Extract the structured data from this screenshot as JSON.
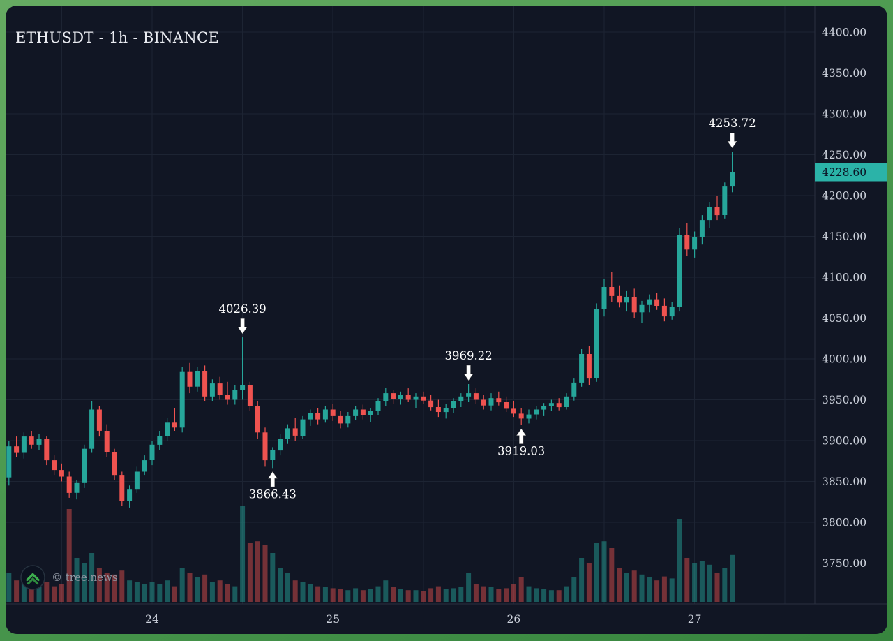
{
  "chart": {
    "title": "ETHUSDT - 1h - BINANCE"
  },
  "watermark": {
    "text": "© tree.news"
  },
  "colors": {
    "frame_green": "#4c9a50",
    "panel_bg": "#111624",
    "grid": "#1d2433",
    "axis_line": "#2a3040",
    "axis_text": "#cdd2dc",
    "up": "#26a69a",
    "down": "#ef5350",
    "volume_up": "rgba(38,166,154,0.48)",
    "volume_down": "rgba(239,83,80,0.45)",
    "accent": "#2bb3a8",
    "price_label_text": "#0b1526",
    "annotation": "#ffffff"
  },
  "chart_data": {
    "type": "candlestick",
    "symbol": "ETHUSDT",
    "interval": "1h",
    "exchange": "BINANCE",
    "title": "ETHUSDT - 1h - BINANCE",
    "current_price": 4228.6,
    "price_axis": {
      "ticks": [
        4400,
        4350,
        4300,
        4250,
        4200,
        4150,
        4100,
        4050,
        4000,
        3950,
        3900,
        3850,
        3800,
        3750
      ],
      "tick_step": 50,
      "format": "0.00"
    },
    "time_axis": {
      "labels": [
        {
          "text": "24",
          "index": 19
        },
        {
          "text": "25",
          "index": 43
        },
        {
          "text": "26",
          "index": 67
        },
        {
          "text": "27",
          "index": 91
        }
      ],
      "grid_indices": [
        7,
        19,
        31,
        43,
        55,
        67,
        79,
        91,
        103
      ]
    },
    "annotations": [
      {
        "label": "4026.39",
        "price": 4026.39,
        "index": 31,
        "placement": "above"
      },
      {
        "label": "3866.43",
        "price": 3866.43,
        "index": 35,
        "placement": "below"
      },
      {
        "label": "3969.22",
        "price": 3969.22,
        "index": 61,
        "placement": "above"
      },
      {
        "label": "3919.03",
        "price": 3919.03,
        "index": 68,
        "placement": "below"
      },
      {
        "label": "4253.72",
        "price": 4253.72,
        "index": 96,
        "placement": "above"
      }
    ],
    "candles": [
      [
        3855,
        3900,
        3845,
        3893,
        0.3
      ],
      [
        3893,
        3905,
        3880,
        3885,
        0.22
      ],
      [
        3885,
        3910,
        3878,
        3905,
        0.25
      ],
      [
        3905,
        3912,
        3890,
        3895,
        0.18
      ],
      [
        3895,
        3908,
        3888,
        3902,
        0.15
      ],
      [
        3902,
        3905,
        3870,
        3876,
        0.2
      ],
      [
        3876,
        3882,
        3858,
        3864,
        0.16
      ],
      [
        3864,
        3872,
        3850,
        3856,
        0.18
      ],
      [
        3856,
        3862,
        3830,
        3836,
        0.95
      ],
      [
        3836,
        3852,
        3828,
        3848,
        0.45
      ],
      [
        3848,
        3895,
        3842,
        3890,
        0.4
      ],
      [
        3890,
        3948,
        3885,
        3938,
        0.5
      ],
      [
        3938,
        3942,
        3905,
        3912,
        0.35
      ],
      [
        3912,
        3920,
        3880,
        3886,
        0.3
      ],
      [
        3886,
        3890,
        3852,
        3858,
        0.28
      ],
      [
        3858,
        3862,
        3820,
        3826,
        0.32
      ],
      [
        3826,
        3845,
        3818,
        3840,
        0.22
      ],
      [
        3840,
        3868,
        3836,
        3862,
        0.2
      ],
      [
        3862,
        3882,
        3858,
        3876,
        0.18
      ],
      [
        3876,
        3900,
        3870,
        3895,
        0.2
      ],
      [
        3895,
        3912,
        3888,
        3906,
        0.18
      ],
      [
        3906,
        3928,
        3900,
        3922,
        0.22
      ],
      [
        3922,
        3940,
        3912,
        3916,
        0.16
      ],
      [
        3916,
        3990,
        3910,
        3984,
        0.35
      ],
      [
        3984,
        3995,
        3958,
        3966,
        0.3
      ],
      [
        3966,
        3990,
        3960,
        3985,
        0.25
      ],
      [
        3985,
        3992,
        3948,
        3954,
        0.28
      ],
      [
        3954,
        3975,
        3948,
        3970,
        0.2
      ],
      [
        3970,
        3978,
        3950,
        3956,
        0.22
      ],
      [
        3956,
        3972,
        3944,
        3950,
        0.18
      ],
      [
        3950,
        3968,
        3944,
        3962,
        0.16
      ],
      [
        3962,
        4026.39,
        3950,
        3968,
        0.98
      ],
      [
        3968,
        3972,
        3936,
        3942,
        0.6
      ],
      [
        3942,
        3948,
        3902,
        3910,
        0.62
      ],
      [
        3910,
        3916,
        3868,
        3876,
        0.58
      ],
      [
        3876,
        3892,
        3866.43,
        3888,
        0.5
      ],
      [
        3888,
        3908,
        3882,
        3902,
        0.35
      ],
      [
        3902,
        3920,
        3896,
        3915,
        0.3
      ],
      [
        3915,
        3928,
        3900,
        3906,
        0.22
      ],
      [
        3906,
        3930,
        3902,
        3926,
        0.2
      ],
      [
        3926,
        3938,
        3918,
        3934,
        0.18
      ],
      [
        3934,
        3940,
        3920,
        3926,
        0.16
      ],
      [
        3926,
        3942,
        3922,
        3938,
        0.15
      ],
      [
        3938,
        3945,
        3924,
        3930,
        0.14
      ],
      [
        3930,
        3936,
        3915,
        3921,
        0.13
      ],
      [
        3921,
        3935,
        3916,
        3930,
        0.12
      ],
      [
        3930,
        3942,
        3925,
        3938,
        0.14
      ],
      [
        3938,
        3944,
        3926,
        3931,
        0.12
      ],
      [
        3931,
        3940,
        3923,
        3936,
        0.13
      ],
      [
        3936,
        3952,
        3931,
        3948,
        0.16
      ],
      [
        3948,
        3965,
        3942,
        3958,
        0.22
      ],
      [
        3958,
        3962,
        3945,
        3951,
        0.15
      ],
      [
        3951,
        3960,
        3944,
        3956,
        0.13
      ],
      [
        3956,
        3964,
        3947,
        3950,
        0.12
      ],
      [
        3950,
        3958,
        3940,
        3954,
        0.12
      ],
      [
        3954,
        3960,
        3945,
        3949,
        0.11
      ],
      [
        3949,
        3956,
        3937,
        3941,
        0.14
      ],
      [
        3941,
        3950,
        3929,
        3935,
        0.16
      ],
      [
        3935,
        3945,
        3927,
        3940,
        0.13
      ],
      [
        3940,
        3952,
        3934,
        3948,
        0.14
      ],
      [
        3948,
        3958,
        3941,
        3954,
        0.15
      ],
      [
        3954,
        3969.22,
        3947,
        3958,
        0.3
      ],
      [
        3958,
        3964,
        3945,
        3950,
        0.18
      ],
      [
        3950,
        3956,
        3938,
        3943,
        0.16
      ],
      [
        3943,
        3958,
        3937,
        3952,
        0.15
      ],
      [
        3952,
        3960,
        3943,
        3947,
        0.13
      ],
      [
        3947,
        3954,
        3935,
        3939,
        0.14
      ],
      [
        3939,
        3948,
        3929,
        3933,
        0.18
      ],
      [
        3933,
        3940,
        3919.03,
        3927,
        0.25
      ],
      [
        3927,
        3938,
        3921,
        3932,
        0.16
      ],
      [
        3932,
        3942,
        3926,
        3938,
        0.14
      ],
      [
        3938,
        3946,
        3930,
        3942,
        0.13
      ],
      [
        3942,
        3950,
        3936,
        3946,
        0.12
      ],
      [
        3946,
        3952,
        3937,
        3941,
        0.12
      ],
      [
        3941,
        3958,
        3938,
        3954,
        0.16
      ],
      [
        3954,
        3976,
        3949,
        3971,
        0.25
      ],
      [
        3971,
        4012,
        3966,
        4006,
        0.45
      ],
      [
        4006,
        4016,
        3968,
        3976,
        0.4
      ],
      [
        3976,
        4068,
        3972,
        4061,
        0.6
      ],
      [
        4061,
        4098,
        4052,
        4088,
        0.62
      ],
      [
        4088,
        4106,
        4070,
        4077,
        0.55
      ],
      [
        4077,
        4090,
        4063,
        4069,
        0.35
      ],
      [
        4069,
        4083,
        4058,
        4076,
        0.3
      ],
      [
        4076,
        4086,
        4050,
        4057,
        0.32
      ],
      [
        4057,
        4071,
        4044,
        4066,
        0.28
      ],
      [
        4066,
        4079,
        4057,
        4073,
        0.25
      ],
      [
        4073,
        4081,
        4060,
        4065,
        0.22
      ],
      [
        4065,
        4074,
        4046,
        4052,
        0.26
      ],
      [
        4052,
        4070,
        4048,
        4064,
        0.24
      ],
      [
        4064,
        4160,
        4058,
        4152,
        0.85
      ],
      [
        4152,
        4166,
        4126,
        4134,
        0.45
      ],
      [
        4134,
        4156,
        4124,
        4149,
        0.4
      ],
      [
        4149,
        4176,
        4140,
        4170,
        0.42
      ],
      [
        4170,
        4192,
        4160,
        4186,
        0.38
      ],
      [
        4186,
        4200,
        4170,
        4176,
        0.3
      ],
      [
        4176,
        4216,
        4172,
        4211,
        0.35
      ],
      [
        4211,
        4253.72,
        4204,
        4228.6,
        0.48
      ]
    ]
  }
}
